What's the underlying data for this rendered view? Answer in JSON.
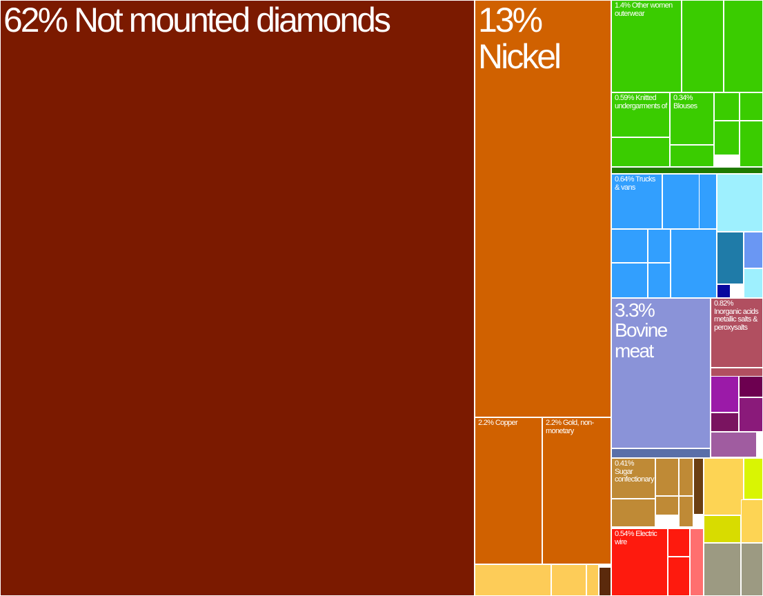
{
  "chart_data": {
    "type": "treemap",
    "categories": [
      "Not mounted diamonds",
      "Nickel",
      "Copper",
      "Gold, non-monetary",
      "Other women outerwear",
      "Knitted undergarments of",
      "Blouses",
      "Trucks & vans",
      "Bovine meat",
      "Inorganic acids metallic salts & peroxysalts",
      "Sugar confectionary",
      "Electric wire"
    ],
    "values": [
      62,
      13,
      2.2,
      2.2,
      1.4,
      0.59,
      0.34,
      0.64,
      3.3,
      0.82,
      0.41,
      0.54
    ],
    "value_labels": [
      "62%",
      "13%",
      "2.2%",
      "2.2%",
      "1.4%",
      "0.59%",
      "0.34%",
      "0.64%",
      "3.3%",
      "0.82%",
      "0.41%",
      "0.54%"
    ],
    "colors": [
      "#7b1a00",
      "#d06100",
      "#d06100",
      "#d06100",
      "#3acc00",
      "#3acc00",
      "#3acc00",
      "#329ffe",
      "#8a93d8",
      "#b14f60",
      "#bf8a36",
      "#fe1a0e"
    ]
  }
}
